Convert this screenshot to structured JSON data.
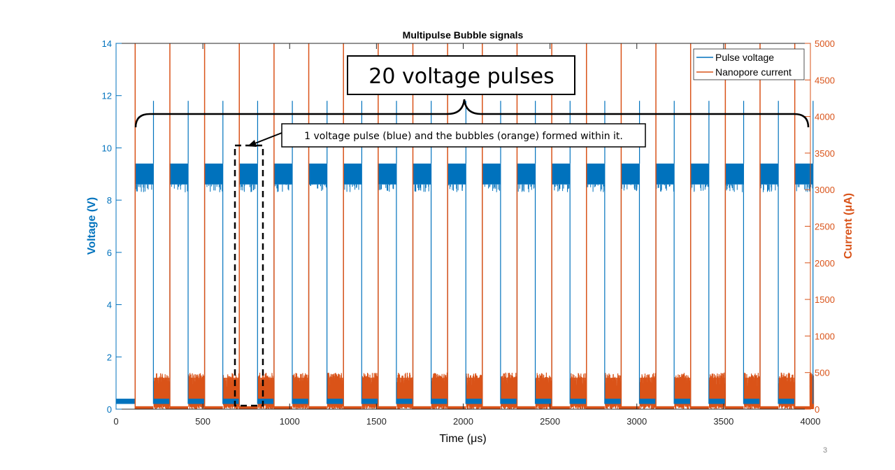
{
  "chart_data": {
    "type": "line",
    "title": "Multipulse Bubble signals",
    "xlabel": "Time (μs)",
    "ylabel_left": "Voltage (V)",
    "ylabel_right": "Current (μA)",
    "xlim": [
      0,
      4000
    ],
    "ylim_left": [
      0,
      14
    ],
    "ylim_right": [
      0,
      5000
    ],
    "xticks": [
      "0",
      "500",
      "1000",
      "1500",
      "2000",
      "2500",
      "3000",
      "3500",
      "4000"
    ],
    "yticks_left": [
      "0",
      "2",
      "4",
      "6",
      "8",
      "10",
      "12",
      "14"
    ],
    "yticks_right": [
      "0",
      "500",
      "1000",
      "1500",
      "2000",
      "2500",
      "3000",
      "3500",
      "4000",
      "4500",
      "5000"
    ],
    "grid": false,
    "legend_position": "top-right",
    "pulse_count": 20,
    "pulse_period": 200,
    "pulse_start": 110,
    "pulse_on_duration": 105,
    "series": [
      {
        "name": "Pulse voltage",
        "axis": "left",
        "color": "#0072BD",
        "high_level_band": [
          8.6,
          9.4
        ],
        "low_level_band": [
          0.2,
          0.4
        ],
        "spike_peak": 11.8
      },
      {
        "name": "Nanopore current",
        "axis": "right",
        "color": "#D95319",
        "on_pulse_band": [
          0,
          0
        ],
        "off_pulse_band": [
          0,
          500
        ],
        "spike_peak": 5000
      }
    ]
  },
  "annotations": {
    "big_label": "20 voltage pulses",
    "small_label": "1 voltage pulse (blue) and the bubbles (orange) formed within it."
  },
  "page_number": "3"
}
